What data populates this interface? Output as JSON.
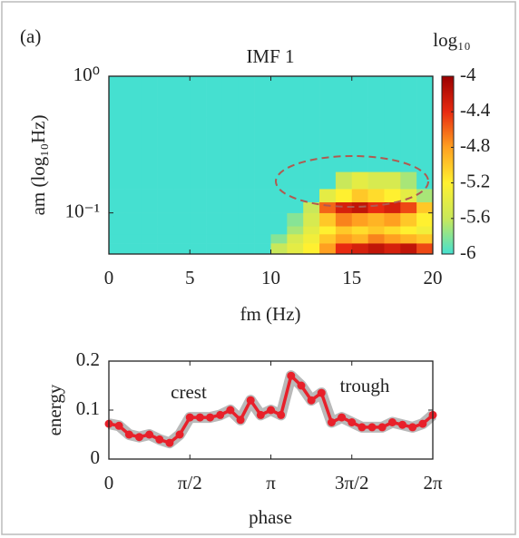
{
  "panel_label": "(a)",
  "chart_data": [
    {
      "type": "heatmap",
      "title": "IMF 1",
      "xlabel": "fm (Hz)",
      "ylabel": "am (log₁₀Hz)",
      "xbins": [
        0,
        1,
        2,
        3,
        4,
        5,
        6,
        7,
        8,
        9,
        10,
        11,
        12,
        13,
        14,
        15,
        16,
        17,
        18,
        19,
        20
      ],
      "ybins": [
        0.05,
        0.06,
        0.07,
        0.08,
        0.1,
        0.12,
        0.15,
        0.2,
        0.3,
        0.5,
        1
      ],
      "z": [
        [
          -6,
          -6,
          -6,
          -6,
          -6,
          -6,
          -6,
          -6,
          -6,
          -6,
          -5.6,
          -5.4,
          -5.2,
          -4.8,
          -4.4,
          -4.3,
          -4.2,
          -4.3,
          -4.2,
          -4.5
        ],
        [
          -6,
          -6,
          -6,
          -6,
          -6,
          -6,
          -6,
          -6,
          -6,
          -6,
          -5.8,
          -5.5,
          -5.3,
          -5,
          -4.8,
          -4.9,
          -4.7,
          -4.8,
          -4.9,
          -5
        ],
        [
          -6,
          -6,
          -6,
          -6,
          -6,
          -6,
          -6,
          -6,
          -6,
          -6,
          -6,
          -5.7,
          -5.4,
          -5.2,
          -5,
          -5.1,
          -5,
          -5.1,
          -5.2,
          -5.3
        ],
        [
          -6,
          -6,
          -6,
          -6,
          -6,
          -6,
          -6,
          -6,
          -6,
          -6,
          -6,
          -5.8,
          -5.5,
          -5,
          -4.7,
          -4.8,
          -4.9,
          -4.8,
          -5,
          -5.2
        ],
        [
          -6,
          -6,
          -6,
          -6,
          -6,
          -6,
          -6,
          -6,
          -6,
          -6,
          -6,
          -6,
          -5.6,
          -4.6,
          -4.3,
          -4.2,
          -4.4,
          -4.3,
          -4.5,
          -5
        ],
        [
          -6,
          -6,
          -6,
          -6,
          -6,
          -6,
          -6,
          -6,
          -6,
          -6,
          -6,
          -6,
          -6,
          -5.4,
          -5.2,
          -5,
          -5.1,
          -5.2,
          -5.4,
          -5.7
        ],
        [
          -6,
          -6,
          -6,
          -6,
          -6,
          -6,
          -6,
          -6,
          -6,
          -6,
          -6,
          -6,
          -6,
          -6,
          -5.6,
          -5.4,
          -5.5,
          -5.5,
          -5.7,
          -6
        ],
        [
          -6,
          -6,
          -6,
          -6,
          -6,
          -6,
          -6,
          -6,
          -6,
          -6,
          -6,
          -6,
          -6,
          -6,
          -6,
          -6,
          -6,
          -6,
          -6,
          -6
        ],
        [
          -6,
          -6,
          -6,
          -6,
          -6,
          -6,
          -6,
          -6,
          -6,
          -6,
          -6,
          -6,
          -6,
          -6,
          -6,
          -6,
          -6,
          -6,
          -6,
          -6
        ],
        [
          -6,
          -6,
          -6,
          -6,
          -6,
          -6,
          -6,
          -6,
          -6,
          -6,
          -6,
          -6,
          -6,
          -6,
          -6,
          -6,
          -6,
          -6,
          -6,
          -6
        ]
      ],
      "xlim": [
        0,
        20
      ],
      "xticks": [
        0,
        5,
        10,
        15,
        20
      ],
      "ylim": [
        0.05,
        1
      ],
      "ylog": true,
      "yticks": [
        {
          "value": 1,
          "label": "10⁰"
        },
        {
          "value": 0.1,
          "label": "10⁻¹"
        }
      ],
      "colorbar_label": "log₁₀",
      "clim": [
        -6,
        -4
      ],
      "cticks": [
        -4,
        -4.4,
        -4.8,
        -5.2,
        -5.6,
        -6
      ],
      "colormap": [
        "#45e0d0",
        "#c9e85a",
        "#fff030",
        "#ffa020",
        "#e82a10",
        "#9a0000"
      ]
    },
    {
      "type": "line",
      "xlabel": "phase",
      "ylabel": "energy",
      "x": [
        0,
        0.196,
        0.393,
        0.589,
        0.785,
        0.982,
        1.178,
        1.374,
        1.571,
        1.767,
        1.963,
        2.16,
        2.356,
        2.553,
        2.749,
        2.945,
        3.142,
        3.338,
        3.534,
        3.731,
        3.927,
        4.123,
        4.32,
        4.516,
        4.712,
        4.909,
        5.105,
        5.301,
        5.498,
        5.694,
        5.89,
        6.087,
        6.283
      ],
      "values": [
        0.072,
        0.068,
        0.05,
        0.045,
        0.05,
        0.04,
        0.033,
        0.05,
        0.085,
        0.085,
        0.085,
        0.09,
        0.1,
        0.08,
        0.12,
        0.09,
        0.1,
        0.09,
        0.17,
        0.15,
        0.12,
        0.135,
        0.075,
        0.085,
        0.075,
        0.065,
        0.065,
        0.065,
        0.075,
        0.07,
        0.065,
        0.072,
        0.09
      ],
      "color": "#e8202a",
      "band_color": "#a8a8a8",
      "xlim": [
        0,
        6.283
      ],
      "xticks": [
        0,
        {
          "value": 1.571,
          "label": "π/2"
        },
        {
          "value": 3.142,
          "label": "π"
        },
        {
          "value": 4.712,
          "label": "3π/2"
        },
        {
          "value": 6.283,
          "label": "2π"
        }
      ],
      "ylim": [
        0,
        0.2
      ],
      "yticks": [
        0,
        0.1,
        0.2
      ],
      "annotations": [
        "crest",
        "trough"
      ]
    }
  ]
}
